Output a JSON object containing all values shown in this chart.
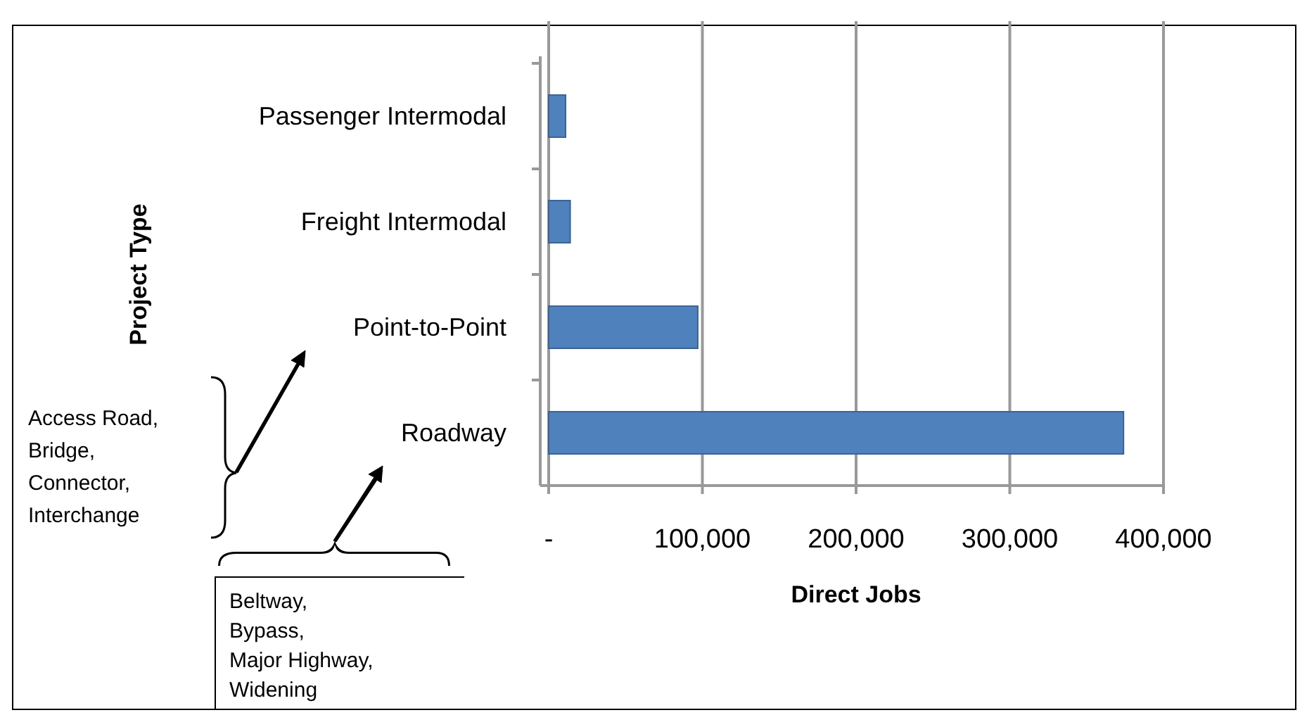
{
  "chart_data": {
    "type": "bar",
    "orientation": "horizontal",
    "xlabel": "Direct Jobs",
    "ylabel": "Project Type",
    "categories": [
      "Passenger Intermodal",
      "Freight Intermodal",
      "Point-to-Point",
      "Roadway"
    ],
    "values": [
      11000,
      14000,
      97000,
      374000
    ],
    "color": "#4f81bd",
    "xlim": [
      0,
      400000
    ],
    "xticks": [
      {
        "value": 0,
        "label": "-"
      },
      {
        "value": 100000,
        "label": "100,000"
      },
      {
        "value": 200000,
        "label": "200,000"
      },
      {
        "value": 300000,
        "label": "300,000"
      },
      {
        "value": 400000,
        "label": "400,000"
      }
    ],
    "grid": "x",
    "annotations": [
      "Access Road, Bridge, Connector, Interchange",
      "Beltway, Bypass, Major Highway, Widening"
    ]
  }
}
